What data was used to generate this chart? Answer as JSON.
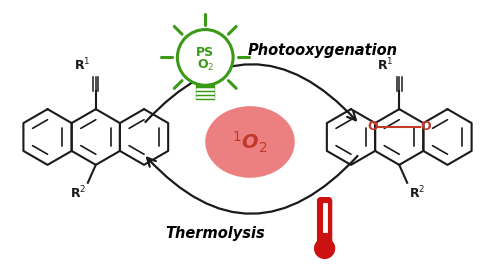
{
  "bg_color": "#ffffff",
  "fig_width": 5.0,
  "fig_height": 2.72,
  "dpi": 100,
  "arrow_color": "#1a1a1a",
  "o2_ellipse_color": "#e86060",
  "o2_ellipse_alpha": 0.8,
  "o2_text": "$^{\\mathbf{1}}$O$_2$",
  "o2_text_color": "#c0392b",
  "o2_fontsize": 14,
  "photo_text": "Photooxygenation",
  "photo_fontsize": 10.5,
  "thermo_text": "Thermolysis",
  "thermo_fontsize": 10.5,
  "bulb_color": "#3a9a18",
  "mol_color": "#1a1a1a",
  "oo_color": "#c0392b",
  "therm_color": "#cc1111"
}
